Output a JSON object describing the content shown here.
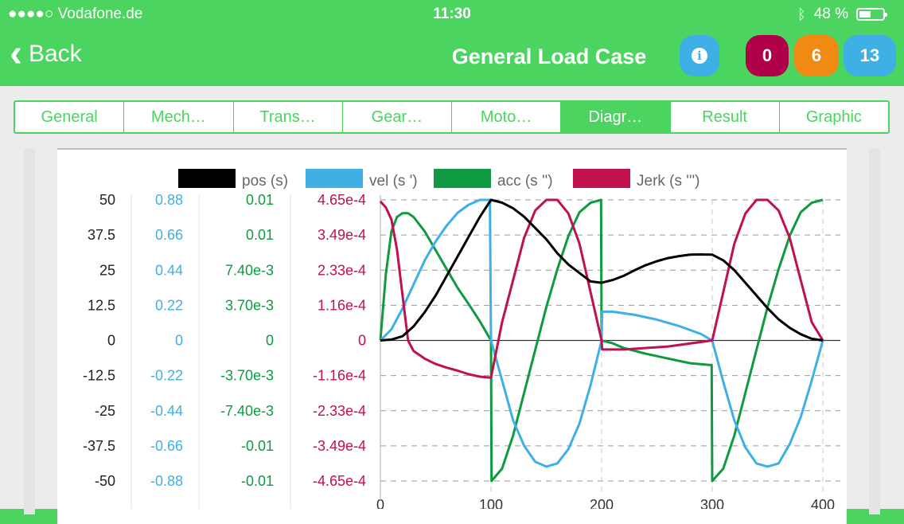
{
  "status": {
    "carrier": "●●●●○ Vodafone.de",
    "time": "11:30",
    "battery": "48 %"
  },
  "nav": {
    "back_label": "Back",
    "title": "General Load Case",
    "badges": [
      "0",
      "6",
      "13"
    ]
  },
  "tabs": [
    {
      "label": "General",
      "active": false
    },
    {
      "label": "Mech…",
      "active": false
    },
    {
      "label": "Trans…",
      "active": false
    },
    {
      "label": "Gear…",
      "active": false
    },
    {
      "label": "Moto…",
      "active": false
    },
    {
      "label": "Diagr…",
      "active": true
    },
    {
      "label": "Result",
      "active": false
    },
    {
      "label": "Graphic",
      "active": false
    }
  ],
  "chart_data": {
    "type": "line",
    "legend_position": "top",
    "grid": true,
    "x_ticks": [
      "0",
      "100",
      "200",
      "300",
      "400"
    ],
    "xlim": [
      0,
      400
    ],
    "series": [
      {
        "name": "pos (s)",
        "color": "#000000",
        "ticks": [
          "50",
          "37.5",
          "25",
          "12.5",
          "0",
          "-12.5",
          "-25",
          "-37.5",
          "-50"
        ],
        "ylim": [
          -50,
          50
        ],
        "points": [
          [
            0,
            0
          ],
          [
            10,
            0.3
          ],
          [
            20,
            1.5
          ],
          [
            30,
            5
          ],
          [
            40,
            10
          ],
          [
            50,
            16
          ],
          [
            60,
            23
          ],
          [
            70,
            30
          ],
          [
            80,
            37
          ],
          [
            90,
            44
          ],
          [
            100,
            50
          ],
          [
            110,
            49
          ],
          [
            120,
            47
          ],
          [
            130,
            44
          ],
          [
            140,
            40
          ],
          [
            150,
            36
          ],
          [
            160,
            31
          ],
          [
            170,
            27
          ],
          [
            180,
            24
          ],
          [
            190,
            21
          ],
          [
            200,
            20.5
          ],
          [
            210,
            21.5
          ],
          [
            220,
            23
          ],
          [
            230,
            25
          ],
          [
            240,
            26.8
          ],
          [
            250,
            28.2
          ],
          [
            260,
            29.3
          ],
          [
            270,
            30
          ],
          [
            280,
            30.5
          ],
          [
            290,
            30.6
          ],
          [
            300,
            30.5
          ],
          [
            310,
            28.5
          ],
          [
            320,
            25
          ],
          [
            330,
            20.5
          ],
          [
            340,
            16
          ],
          [
            350,
            11.5
          ],
          [
            360,
            7.5
          ],
          [
            370,
            4.5
          ],
          [
            380,
            2.2
          ],
          [
            390,
            0.6
          ],
          [
            400,
            0
          ]
        ]
      },
      {
        "name": "vel (s ')",
        "color": "#3eb0e6",
        "ticks": [
          "0.88",
          "0.66",
          "0.44",
          "0.22",
          "0",
          "-0.22",
          "-0.44",
          "-0.66",
          "-0.88"
        ],
        "ylim": [
          -0.88,
          0.88
        ],
        "points": [
          [
            0,
            0
          ],
          [
            10,
            0.07
          ],
          [
            20,
            0.2
          ],
          [
            30,
            0.35
          ],
          [
            40,
            0.5
          ],
          [
            50,
            0.62
          ],
          [
            60,
            0.72
          ],
          [
            70,
            0.8
          ],
          [
            80,
            0.85
          ],
          [
            90,
            0.88
          ],
          [
            99,
            0.88
          ],
          [
            100,
            0
          ],
          [
            110,
            -0.25
          ],
          [
            120,
            -0.5
          ],
          [
            130,
            -0.66
          ],
          [
            140,
            -0.76
          ],
          [
            150,
            -0.79
          ],
          [
            160,
            -0.77
          ],
          [
            170,
            -0.68
          ],
          [
            180,
            -0.52
          ],
          [
            190,
            -0.28
          ],
          [
            200,
            0
          ],
          [
            200.5,
            0.18
          ],
          [
            210,
            0.18
          ],
          [
            230,
            0.16
          ],
          [
            250,
            0.13
          ],
          [
            270,
            0.09
          ],
          [
            290,
            0.04
          ],
          [
            300,
            0
          ],
          [
            310,
            -0.26
          ],
          [
            320,
            -0.5
          ],
          [
            330,
            -0.67
          ],
          [
            340,
            -0.77
          ],
          [
            350,
            -0.79
          ],
          [
            360,
            -0.77
          ],
          [
            370,
            -0.65
          ],
          [
            380,
            -0.48
          ],
          [
            390,
            -0.25
          ],
          [
            400,
            0
          ]
        ]
      },
      {
        "name": "acc (s '')",
        "color": "#0e9a40",
        "ticks": [
          "0.01",
          "0.01",
          "7.40e-3",
          "3.70e-3",
          "0",
          "-3.70e-3",
          "-7.40e-3",
          "-0.01",
          "-0.01"
        ],
        "ylim": [
          -0.0148,
          0.0148
        ],
        "points": [
          [
            0,
            0
          ],
          [
            5,
            0.007
          ],
          [
            10,
            0.0115
          ],
          [
            15,
            0.013
          ],
          [
            20,
            0.0134
          ],
          [
            25,
            0.0134
          ],
          [
            30,
            0.013
          ],
          [
            40,
            0.0115
          ],
          [
            50,
            0.0095
          ],
          [
            60,
            0.0075
          ],
          [
            70,
            0.0055
          ],
          [
            80,
            0.0038
          ],
          [
            90,
            0.002
          ],
          [
            100,
            0
          ],
          [
            100.5,
            -0.0148
          ],
          [
            110,
            -0.0135
          ],
          [
            120,
            -0.01
          ],
          [
            130,
            -0.0055
          ],
          [
            140,
            -0.001
          ],
          [
            150,
            0.0035
          ],
          [
            160,
            0.0075
          ],
          [
            170,
            0.011
          ],
          [
            180,
            0.0135
          ],
          [
            190,
            0.0145
          ],
          [
            199.5,
            0.0148
          ],
          [
            200,
            0
          ],
          [
            210,
            -0.0003
          ],
          [
            220,
            -0.0008
          ],
          [
            240,
            -0.0014
          ],
          [
            260,
            -0.0019
          ],
          [
            280,
            -0.0024
          ],
          [
            299.5,
            -0.0026
          ],
          [
            300,
            -0.0148
          ],
          [
            310,
            -0.0135
          ],
          [
            320,
            -0.01
          ],
          [
            330,
            -0.0055
          ],
          [
            340,
            -0.001
          ],
          [
            350,
            0.0035
          ],
          [
            360,
            0.0075
          ],
          [
            370,
            0.011
          ],
          [
            380,
            0.0135
          ],
          [
            390,
            0.0145
          ],
          [
            400,
            0.0148
          ]
        ]
      },
      {
        "name": "Jerk (s ''')",
        "color": "#c0104e",
        "ticks": [
          "4.65e-4",
          "3.49e-4",
          "2.33e-4",
          "1.16e-4",
          "0",
          "-1.16e-4",
          "-2.33e-4",
          "-3.49e-4",
          "-4.65e-4"
        ],
        "ylim": [
          -0.000465,
          0.000465
        ],
        "points": [
          [
            0,
            0.00046
          ],
          [
            5,
            0.00044
          ],
          [
            10,
            0.0004
          ],
          [
            15,
            0.0003
          ],
          [
            20,
            0.00015
          ],
          [
            25,
            0
          ],
          [
            30,
            -3.5e-05
          ],
          [
            40,
            -6e-05
          ],
          [
            50,
            -7.8e-05
          ],
          [
            60,
            -9e-05
          ],
          [
            70,
            -0.0001
          ],
          [
            80,
            -0.000112
          ],
          [
            90,
            -0.00012
          ],
          [
            100,
            -0.000123
          ],
          [
            110,
            6e-05
          ],
          [
            120,
            0.0002
          ],
          [
            130,
            0.00034
          ],
          [
            140,
            0.00043
          ],
          [
            150,
            0.000465
          ],
          [
            160,
            0.000465
          ],
          [
            170,
            0.00042
          ],
          [
            180,
            0.00032
          ],
          [
            190,
            0.00016
          ],
          [
            200,
            0
          ],
          [
            200.5,
            -3e-05
          ],
          [
            220,
            -3e-05
          ],
          [
            260,
            -2e-05
          ],
          [
            300,
            0
          ],
          [
            310,
            0.00016
          ],
          [
            320,
            0.00032
          ],
          [
            330,
            0.00042
          ],
          [
            340,
            0.000465
          ],
          [
            350,
            0.000465
          ],
          [
            360,
            0.00043
          ],
          [
            370,
            0.00034
          ],
          [
            380,
            0.0002
          ],
          [
            390,
            6e-05
          ],
          [
            400,
            0
          ]
        ]
      }
    ]
  }
}
